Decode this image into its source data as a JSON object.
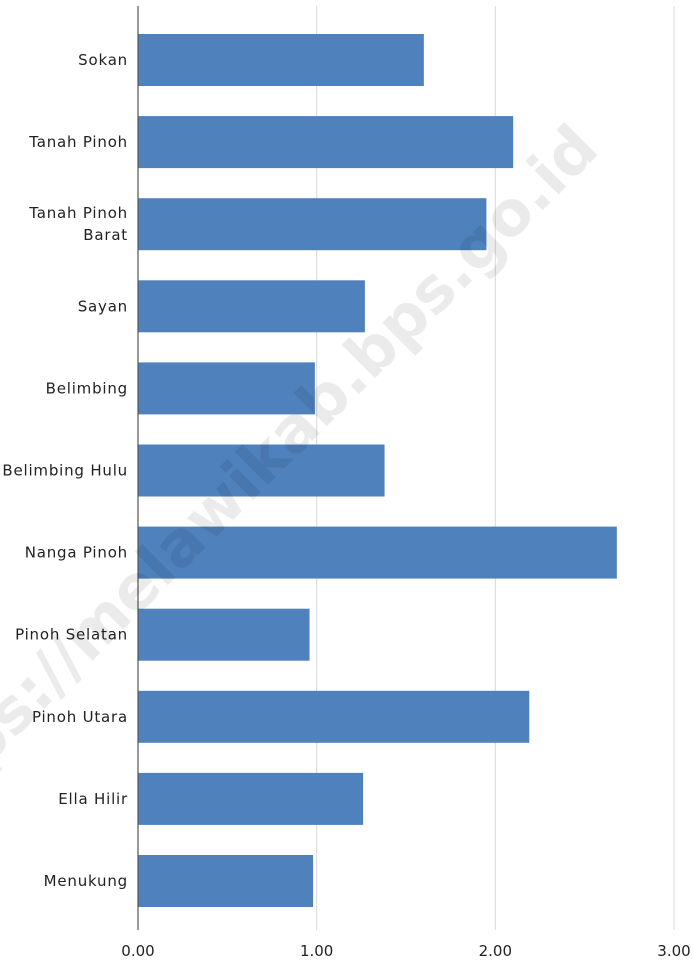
{
  "chart_data": {
    "type": "bar",
    "orientation": "horizontal",
    "categories": [
      "Sokan",
      "Tanah Pinoh",
      "Tanah Pinoh Barat",
      "Sayan",
      "Belimbing",
      "Belimbing Hulu",
      "Nanga Pinoh",
      "Pinoh Selatan",
      "Pinoh Utara",
      "Ella Hilir",
      "Menukung"
    ],
    "category_lines": [
      [
        "Sokan"
      ],
      [
        "Tanah Pinoh"
      ],
      [
        "Tanah Pinoh",
        "Barat"
      ],
      [
        "Sayan"
      ],
      [
        "Belimbing"
      ],
      [
        "Belimbing Hulu"
      ],
      [
        "Nanga Pinoh"
      ],
      [
        "Pinoh Selatan"
      ],
      [
        "Pinoh Utara"
      ],
      [
        "Ella Hilir"
      ],
      [
        "Menukung"
      ]
    ],
    "values": [
      1.6,
      2.1,
      1.95,
      1.27,
      0.99,
      1.38,
      2.68,
      0.96,
      2.19,
      1.26,
      0.98
    ],
    "xlim": [
      0,
      3
    ],
    "x_ticks": [
      "0.00",
      "1.00",
      "2.00",
      "3.00"
    ],
    "grid": "vertical",
    "bar_color": "#4f81bd",
    "title": "",
    "xlabel": "",
    "ylabel": ""
  },
  "watermark": "https://melawikab.bps.go.id"
}
